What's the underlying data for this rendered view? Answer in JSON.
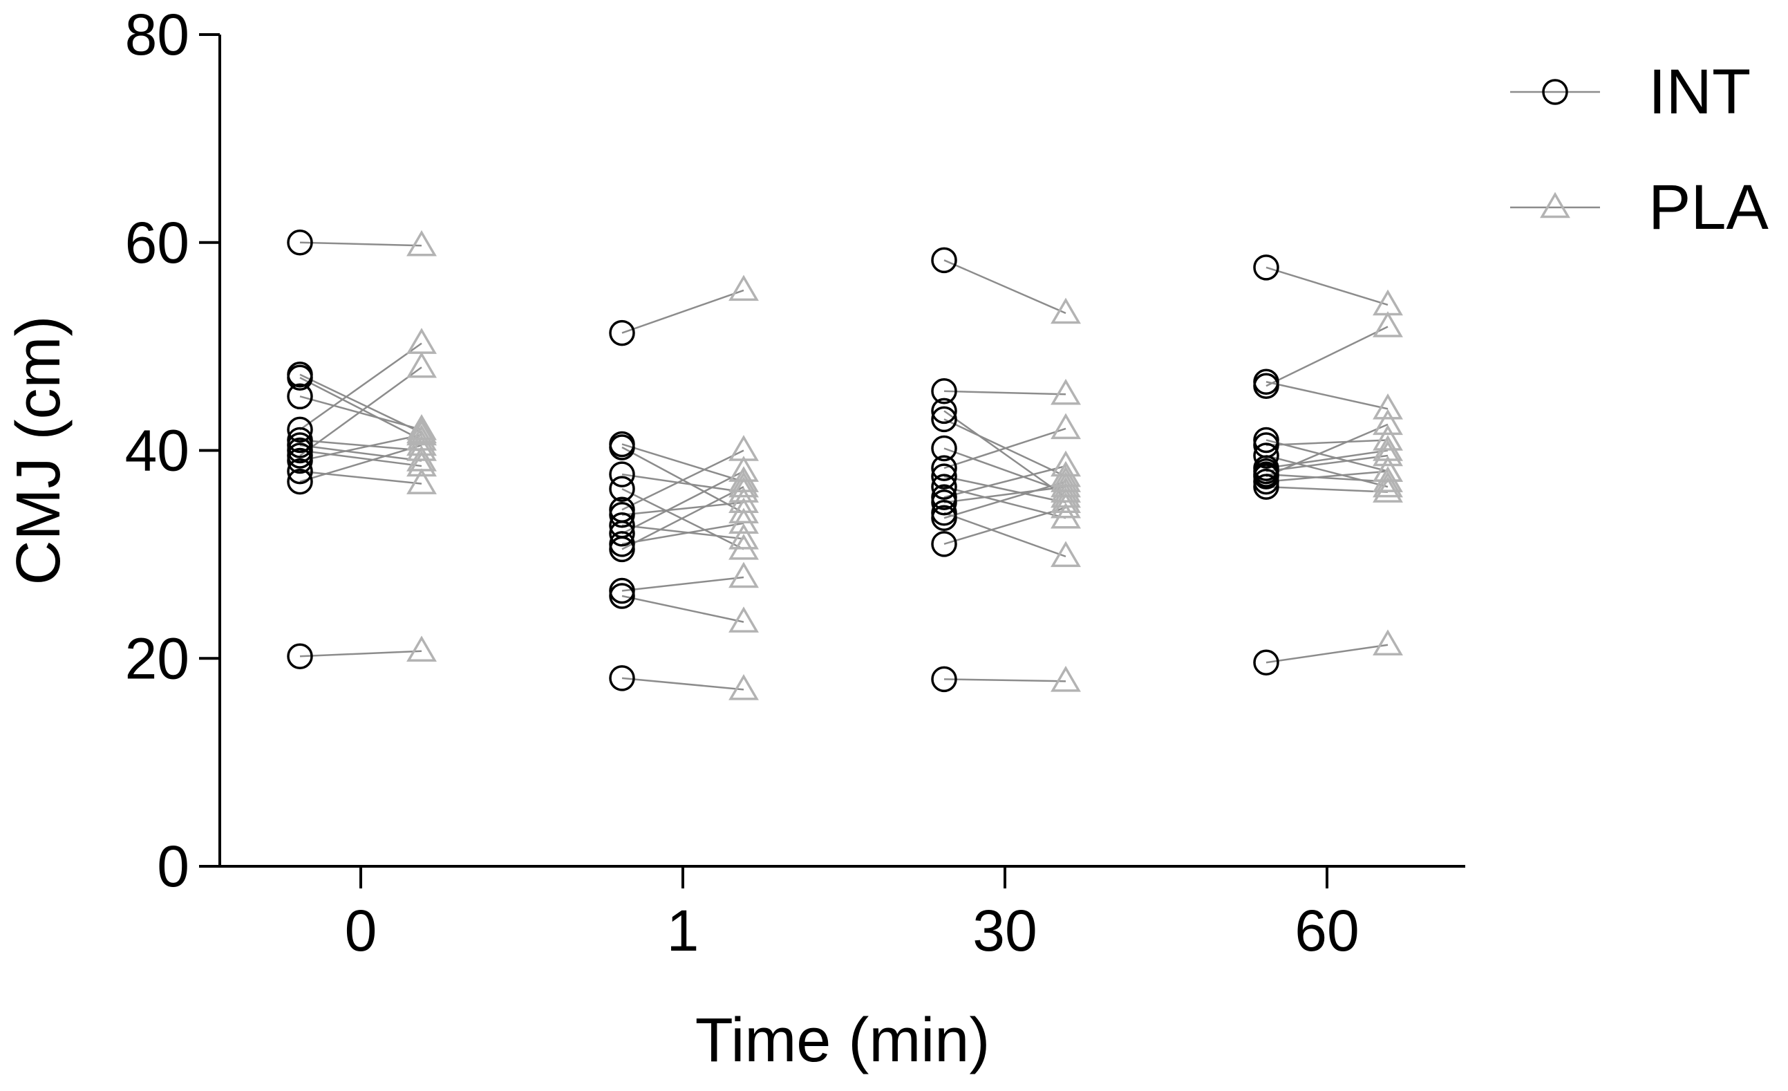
{
  "chart_data": {
    "type": "scatter",
    "title": "",
    "xlabel": "Time (min)",
    "ylabel": "CMJ (cm)",
    "ylim": [
      0,
      80
    ],
    "yticks": [
      0,
      20,
      40,
      60,
      80
    ],
    "categories": [
      "0",
      "1",
      "30",
      "60"
    ],
    "legend_position": "top-right",
    "grid": false,
    "colors": {
      "INT": "#000000",
      "PLA": "#b3b3b3",
      "pair_line": "#8c8c8c"
    },
    "series": [
      {
        "name": "INT",
        "marker": "circle",
        "values": [
          [
            60.0,
            47.3,
            47.0,
            45.2,
            42.0,
            41.0,
            40.5,
            40.0,
            39.5,
            39.0,
            38.0,
            37.0,
            20.2
          ],
          [
            51.3,
            40.6,
            40.3,
            37.7,
            36.3,
            34.3,
            33.8,
            32.8,
            32.0,
            31.0,
            30.5,
            26.5,
            26.0,
            18.1
          ],
          [
            58.3,
            45.7,
            43.8,
            43.0,
            40.2,
            38.3,
            37.5,
            36.5,
            35.5,
            35.0,
            34.0,
            33.5,
            31.0,
            18.0
          ],
          [
            57.6,
            46.6,
            46.2,
            41.0,
            40.5,
            39.5,
            38.3,
            38.0,
            37.7,
            37.5,
            37.0,
            36.5,
            19.6
          ]
        ]
      },
      {
        "name": "PLA",
        "marker": "triangle",
        "values": [
          [
            59.7,
            41.7,
            41.0,
            42.0,
            50.3,
            40.0,
            39.0,
            38.5,
            48.0,
            41.5,
            36.8,
            40.5,
            20.7
          ],
          [
            55.4,
            37.0,
            34.0,
            36.0,
            30.5,
            40.0,
            35.0,
            31.5,
            38.0,
            33.0,
            36.5,
            27.8,
            23.5,
            17.0
          ],
          [
            53.2,
            45.4,
            35.5,
            37.5,
            36.0,
            42.1,
            35.0,
            33.5,
            38.5,
            36.5,
            29.8,
            37.0,
            34.5,
            17.8
          ],
          [
            54.0,
            44.0,
            51.9,
            38.0,
            41.0,
            36.5,
            40.0,
            39.5,
            37.0,
            42.5,
            38.0,
            36.0,
            21.3
          ]
        ]
      }
    ]
  }
}
